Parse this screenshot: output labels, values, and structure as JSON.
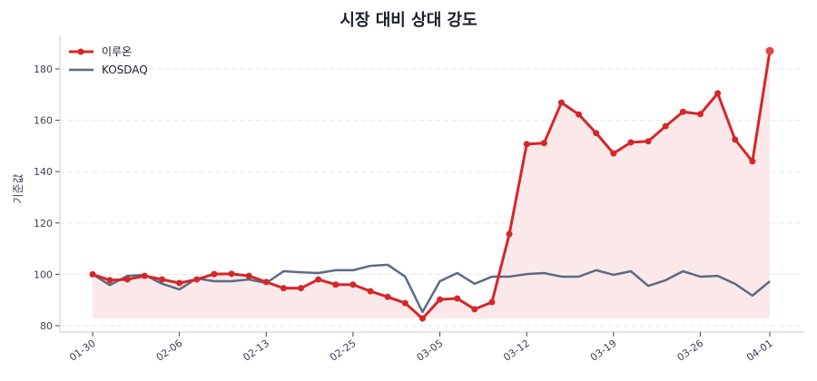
{
  "chart_data": {
    "type": "line",
    "title": "시장 대비 상대 강도",
    "xlabel": "",
    "ylabel": "기준값",
    "ylim": [
      78,
      192
    ],
    "yticks": [
      80,
      100,
      120,
      140,
      160,
      180
    ],
    "xticks": [
      "01-30",
      "02-06",
      "02-13",
      "02-25",
      "03-05",
      "03-12",
      "03-19",
      "03-26",
      "04-01"
    ],
    "xtick_index": [
      0,
      5,
      10,
      15,
      20,
      25,
      30,
      35,
      39
    ],
    "grid": "horizontal dashed",
    "legend_position": "upper left",
    "colors": {
      "stock": "#d62728",
      "market": "#5a6b85",
      "fill": "#fbe9e9",
      "grid": "#e6e6e6",
      "axis": "#d0d4dc"
    },
    "series": [
      {
        "name": "이루온",
        "values": [
          100,
          97.7,
          98,
          99.4,
          98,
          96.6,
          98,
          100.1,
          100.2,
          99.4,
          97,
          94.6,
          94.6,
          98,
          96,
          96,
          93.4,
          91.2,
          88.8,
          82.8,
          90.2,
          90.6,
          86.4,
          89.2,
          115.7,
          150.7,
          151.1,
          166.9,
          162.3,
          155,
          147.1,
          151.4,
          151.8,
          157.7,
          163.3,
          162.4,
          170.5,
          152.5,
          144,
          187
        ]
      },
      {
        "name": "KOSDAQ",
        "values": [
          100,
          95.8,
          99.4,
          99.8,
          96.3,
          94.1,
          98.4,
          97.3,
          97.3,
          98,
          96.6,
          101.2,
          100.8,
          100.5,
          101.6,
          101.6,
          103.3,
          103.7,
          99.1,
          85.3,
          97.3,
          100.5,
          96.3,
          99.1,
          99.1,
          100.1,
          100.5,
          99.1,
          99.1,
          101.6,
          99.8,
          101.2,
          95.5,
          97.7,
          101.2,
          99.1,
          99.4,
          96.3,
          91.7,
          97.3
        ]
      }
    ]
  }
}
